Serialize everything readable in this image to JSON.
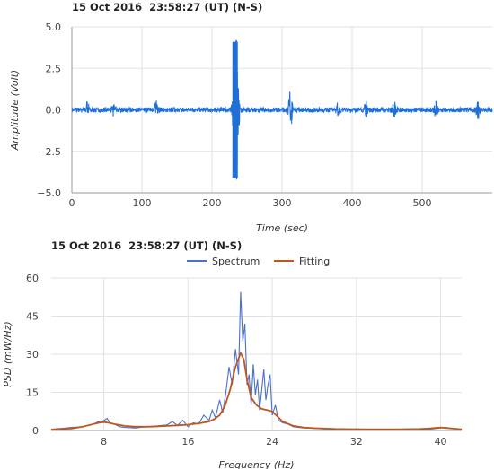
{
  "chart_data": [
    {
      "type": "line",
      "title": "15 Oct 2016  23:58:27 (UT) (N-S)",
      "xlabel": "Time (sec)",
      "ylabel": "Amplitude (Volt)",
      "xlim": [
        0,
        600
      ],
      "ylim": [
        -5.0,
        5.0
      ],
      "xticks": [
        0,
        100,
        200,
        300,
        400,
        500
      ],
      "xtick_labels": [
        "0",
        "100",
        "200",
        "300",
        "400",
        "500"
      ],
      "yticks": [
        -5.0,
        -2.5,
        0.0,
        2.5,
        5.0
      ],
      "ytick_labels": [
        "−5.0",
        "−2.5",
        "0.0",
        "2.5",
        "5.0"
      ],
      "grid": true,
      "series": [
        {
          "color": "#1f6fd6",
          "description_events": [
            {
              "t": 22,
              "amp": 0.5
            },
            {
              "t": 60,
              "amp": 0.35
            },
            {
              "t": 120,
              "amp": 0.5
            },
            {
              "t": 233,
              "amp": 4.1
            },
            {
              "t": 236,
              "amp": 2.8
            },
            {
              "t": 312,
              "amp": 1.2
            },
            {
              "t": 380,
              "amp": 0.45
            },
            {
              "t": 420,
              "amp": 0.55
            },
            {
              "t": 460,
              "amp": 0.4
            },
            {
              "t": 520,
              "amp": 0.45
            },
            {
              "t": 580,
              "amp": 0.5
            }
          ],
          "noise_amp": 0.15
        }
      ]
    },
    {
      "type": "line",
      "title": "15 Oct 2016  23:58:27 (UT) (N-S)",
      "xlabel": "Frequency (Hz)",
      "ylabel": "PSD (mW/Hz)",
      "xlim": [
        3,
        42
      ],
      "ylim": [
        0,
        60
      ],
      "xticks": [
        8,
        16,
        24,
        32,
        40
      ],
      "xtick_labels": [
        "8",
        "16",
        "24",
        "32",
        "40"
      ],
      "yticks": [
        0,
        15,
        30,
        45,
        60
      ],
      "ytick_labels": [
        "0",
        "15",
        "30",
        "45",
        "60"
      ],
      "grid": true,
      "legend_position": "top",
      "series": [
        {
          "name": "Spectrum",
          "color": "#4a6fd0",
          "x": [
            3,
            4,
            5,
            6,
            7,
            7.5,
            8,
            8.3,
            8.6,
            9,
            9.5,
            10,
            11,
            12,
            13,
            14,
            14.5,
            15,
            15.5,
            16,
            16.5,
            17,
            17.5,
            18,
            18.3,
            18.6,
            19,
            19.3,
            19.6,
            19.9,
            20.2,
            20.5,
            20.8,
            21,
            21.2,
            21.4,
            21.6,
            21.8,
            22,
            22.2,
            22.4,
            22.6,
            22.8,
            23,
            23.2,
            23.4,
            23.6,
            23.8,
            24,
            24.3,
            24.6,
            25,
            25.5,
            26,
            27,
            28,
            29,
            30,
            31,
            32,
            33,
            34,
            35,
            36,
            37,
            38,
            39,
            40,
            40.5,
            41,
            42
          ],
          "y": [
            0.5,
            0.8,
            1.2,
            1.5,
            2.5,
            3.5,
            3.8,
            4.8,
            3.0,
            2.5,
            1.5,
            1.2,
            1.0,
            1.5,
            1.8,
            2.2,
            3.5,
            2.0,
            4.0,
            1.5,
            3.0,
            2.5,
            6.0,
            4.0,
            8.0,
            5.0,
            12.0,
            7.0,
            15.0,
            25.0,
            18.0,
            32.0,
            22.0,
            54.5,
            35.0,
            42.0,
            18.0,
            22.0,
            10.0,
            26.0,
            14.0,
            20.0,
            8.0,
            16.0,
            24.0,
            12.0,
            18.0,
            22.0,
            6.0,
            10.0,
            4.0,
            3.0,
            2.5,
            1.5,
            1.0,
            0.8,
            0.6,
            0.5,
            0.5,
            0.6,
            0.5,
            0.4,
            0.5,
            0.4,
            0.5,
            0.6,
            0.5,
            1.0,
            1.2,
            0.8,
            0.5
          ]
        },
        {
          "name": "Fitting",
          "color": "#c0561a",
          "x": [
            3,
            5,
            6,
            7,
            7.5,
            8,
            8.5,
            9,
            10,
            11,
            12,
            13,
            14,
            15,
            16,
            17,
            18,
            18.5,
            19,
            19.5,
            20,
            20.5,
            21,
            21.3,
            21.6,
            22,
            22.5,
            23,
            23.5,
            24,
            24.5,
            25,
            26,
            27,
            28,
            30,
            32,
            34,
            36,
            38,
            39,
            40,
            41,
            42
          ],
          "y": [
            0.3,
            0.8,
            1.5,
            2.5,
            3.0,
            3.3,
            3.0,
            2.5,
            1.8,
            1.5,
            1.5,
            1.6,
            1.8,
            2.0,
            2.3,
            2.8,
            3.5,
            4.5,
            6.0,
            9.5,
            16.0,
            25.0,
            30.5,
            28.0,
            20.0,
            13.0,
            10.0,
            8.5,
            8.0,
            7.5,
            5.5,
            3.5,
            1.8,
            1.2,
            0.9,
            0.6,
            0.5,
            0.5,
            0.5,
            0.6,
            0.8,
            1.2,
            0.8,
            0.5
          ]
        }
      ]
    }
  ]
}
